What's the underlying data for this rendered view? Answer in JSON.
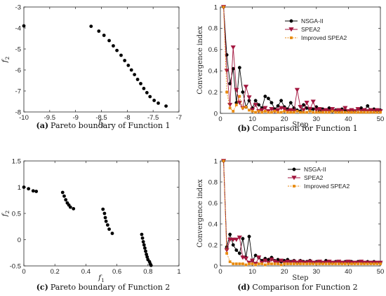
{
  "colors": {
    "nsga": "#000000",
    "spea": "#a3163f",
    "improved": "#e88a0f"
  },
  "chart_data": [
    {
      "type": "scatter",
      "caption_tag": "(a)",
      "caption_text": "Pareto boundary of Function 1",
      "xlabel": "f",
      "xlabel_sub": "1",
      "ylabel": "f",
      "ylabel_sub": "2",
      "xlim": [
        -10,
        -7
      ],
      "ylim": [
        -8,
        -3
      ],
      "xticks": [
        -10,
        -9.5,
        -9,
        -8.5,
        -8,
        -7.5,
        -7
      ],
      "xtick_labels": [
        "-10",
        "-9.5",
        "-9",
        "-8.5",
        "-8",
        "-7.5",
        "-7"
      ],
      "yticks": [
        -8,
        -7,
        -6,
        -5,
        -4,
        -3
      ],
      "ytick_labels": [
        "-8",
        "-7",
        "-6",
        "-5",
        "-4",
        "-3"
      ],
      "points": [
        [
          -10,
          -3.9
        ],
        [
          -8.7,
          -3.92
        ],
        [
          -8.55,
          -4.15
        ],
        [
          -8.45,
          -4.35
        ],
        [
          -8.35,
          -4.6
        ],
        [
          -8.27,
          -4.85
        ],
        [
          -8.2,
          -5.07
        ],
        [
          -8.12,
          -5.3
        ],
        [
          -8.05,
          -5.55
        ],
        [
          -7.98,
          -5.78
        ],
        [
          -7.92,
          -6.0
        ],
        [
          -7.86,
          -6.22
        ],
        [
          -7.8,
          -6.45
        ],
        [
          -7.74,
          -6.65
        ],
        [
          -7.68,
          -6.88
        ],
        [
          -7.62,
          -7.08
        ],
        [
          -7.56,
          -7.27
        ],
        [
          -7.48,
          -7.45
        ],
        [
          -7.4,
          -7.58
        ],
        [
          -7.25,
          -7.72
        ]
      ]
    },
    {
      "type": "line",
      "caption_tag": "(b)",
      "caption_text": "Comparison for Function 1",
      "xlabel": "Step",
      "ylabel": "Convergence index",
      "xlim": [
        0,
        50
      ],
      "ylim": [
        0,
        1
      ],
      "xticks": [
        0,
        10,
        20,
        30,
        40,
        50
      ],
      "xtick_labels": [
        "0",
        "10",
        "20",
        "30",
        "40",
        "50"
      ],
      "yticks": [
        0,
        0.2,
        0.4,
        0.6,
        0.8,
        1
      ],
      "ytick_labels": [
        "0",
        "0.2",
        "0.4",
        "0.6",
        "0.8",
        "1"
      ],
      "legend_position": "upper-middle",
      "series": [
        {
          "name": "NSGA-II",
          "color_key": "nsga",
          "marker": "circle",
          "x": [
            1,
            2,
            3,
            4,
            5,
            6,
            7,
            8,
            9,
            10,
            11,
            12,
            13,
            14,
            15,
            16,
            17,
            18,
            19,
            20,
            21,
            22,
            23,
            24,
            25,
            26,
            27,
            28,
            29,
            30,
            31,
            32,
            33,
            34,
            35,
            36,
            37,
            38,
            39,
            40,
            41,
            42,
            43,
            44,
            45,
            46,
            47,
            48,
            49,
            50
          ],
          "y": [
            1,
            0.55,
            0.28,
            0.42,
            0.1,
            0.43,
            0.2,
            0.06,
            0.12,
            0.05,
            0.12,
            0.08,
            0.05,
            0.16,
            0.14,
            0.1,
            0.04,
            0.07,
            0.12,
            0.06,
            0.04,
            0.1,
            0.05,
            0.03,
            0.02,
            0.08,
            0.05,
            0.03,
            0.04,
            0.06,
            0.02,
            0.04,
            0.03,
            0.05,
            0.02,
            0.03,
            0.02,
            0.04,
            0.03,
            0.02,
            0.03,
            0.02,
            0.04,
            0.05,
            0.03,
            0.07,
            0.03,
            0.04,
            0.02,
            0.03
          ]
        },
        {
          "name": "SPEA2",
          "color_key": "spea",
          "marker": "triangle-down",
          "x": [
            1,
            2,
            3,
            4,
            5,
            6,
            7,
            8,
            9,
            10,
            11,
            12,
            13,
            14,
            15,
            16,
            17,
            18,
            19,
            20,
            21,
            22,
            23,
            24,
            25,
            26,
            27,
            28,
            29,
            30,
            31,
            32,
            33,
            34,
            35,
            36,
            37,
            38,
            39,
            40,
            41,
            42,
            43,
            44,
            45,
            46,
            47,
            48,
            49,
            50
          ],
          "y": [
            1,
            0.4,
            0.08,
            0.62,
            0.22,
            0.1,
            0.05,
            0.25,
            0.15,
            0.03,
            0.08,
            0.02,
            0.03,
            0.05,
            0.02,
            0.04,
            0.02,
            0.03,
            0.05,
            0.04,
            0.02,
            0.03,
            0.02,
            0.22,
            0.06,
            0.03,
            0.1,
            0.04,
            0.11,
            0.03,
            0.04,
            0.02,
            0.03,
            0.02,
            0.04,
            0.02,
            0.03,
            0.02,
            0.05,
            0.02,
            0.03,
            0.02,
            0.04,
            0.02,
            0.03,
            0.02,
            0.03,
            0.02,
            0.03,
            0.02
          ]
        },
        {
          "name": "Improved SPEA2",
          "color_key": "improved",
          "marker": "square",
          "x": [
            1,
            2,
            3,
            4,
            5,
            6,
            7,
            8,
            9,
            10,
            11,
            12,
            13,
            14,
            15,
            16,
            17,
            18,
            19,
            20,
            21,
            22,
            23,
            24,
            25,
            26,
            27,
            28,
            29,
            30,
            31,
            32,
            33,
            34,
            35,
            36,
            37,
            38,
            39,
            40,
            41,
            42,
            43,
            44,
            45,
            46,
            47,
            48,
            49,
            50
          ],
          "y": [
            1,
            0.2,
            0.05,
            0.02,
            0.08,
            0.16,
            0.05,
            0.06,
            0.03,
            0.02,
            0.01,
            0.02,
            0.01,
            0.02,
            0.01,
            0.01,
            0.02,
            0.01,
            0.01,
            0.02,
            0.01,
            0.01,
            0.01,
            0.02,
            0.01,
            0.01,
            0.01,
            0.02,
            0.01,
            0.01,
            0.01,
            0.01,
            0.01,
            0.01,
            0.02,
            0.01,
            0.01,
            0.01,
            0.01,
            0.01,
            0.01,
            0.01,
            0.01,
            0.01,
            0.01,
            0.01,
            0.01,
            0.01,
            0.01,
            0.01
          ]
        }
      ]
    },
    {
      "type": "scatter",
      "caption_tag": "(c)",
      "caption_text": "Pareto boundary of Function 2",
      "xlabel": "f",
      "xlabel_sub": "1",
      "ylabel": "f",
      "ylabel_sub": "2",
      "xlim": [
        0,
        1
      ],
      "ylim": [
        -0.5,
        1.5
      ],
      "xticks": [
        0,
        0.2,
        0.4,
        0.6,
        0.8,
        1
      ],
      "xtick_labels": [
        "0",
        "0.2",
        "0.4",
        "0.6",
        "0.8",
        "1"
      ],
      "yticks": [
        -0.5,
        0,
        0.5,
        1,
        1.5
      ],
      "ytick_labels": [
        "-0.5",
        "0",
        "0.5",
        "1",
        "1.5"
      ],
      "points": [
        [
          0.0,
          1.0
        ],
        [
          0.03,
          0.97
        ],
        [
          0.06,
          0.93
        ],
        [
          0.08,
          0.92
        ],
        [
          0.25,
          0.9
        ],
        [
          0.26,
          0.83
        ],
        [
          0.27,
          0.76
        ],
        [
          0.28,
          0.7
        ],
        [
          0.29,
          0.66
        ],
        [
          0.3,
          0.62
        ],
        [
          0.32,
          0.59
        ],
        [
          0.51,
          0.58
        ],
        [
          0.52,
          0.5
        ],
        [
          0.525,
          0.42
        ],
        [
          0.53,
          0.35
        ],
        [
          0.54,
          0.28
        ],
        [
          0.55,
          0.2
        ],
        [
          0.57,
          0.12
        ],
        [
          0.76,
          0.1
        ],
        [
          0.765,
          0.03
        ],
        [
          0.77,
          -0.04
        ],
        [
          0.775,
          -0.1
        ],
        [
          0.78,
          -0.16
        ],
        [
          0.785,
          -0.22
        ],
        [
          0.79,
          -0.28
        ],
        [
          0.795,
          -0.33
        ],
        [
          0.8,
          -0.38
        ],
        [
          0.81,
          -0.42
        ],
        [
          0.815,
          -0.46
        ],
        [
          0.82,
          -0.49
        ]
      ]
    },
    {
      "type": "line",
      "caption_tag": "(d)",
      "caption_text": "Comparison for Function 2",
      "xlabel": "Step",
      "ylabel": "Convergence index",
      "xlim": [
        0,
        50
      ],
      "ylim": [
        0,
        1
      ],
      "xticks": [
        0,
        10,
        20,
        30,
        40,
        50
      ],
      "xtick_labels": [
        "0",
        "10",
        "20",
        "30",
        "40",
        "50"
      ],
      "yticks": [
        0,
        0.2,
        0.4,
        0.6,
        0.8,
        1
      ],
      "ytick_labels": [
        "0",
        "0.2",
        "0.4",
        "0.6",
        "0.8",
        "1"
      ],
      "legend_position": "upper-right",
      "series": [
        {
          "name": "NSGA-II",
          "color_key": "nsga",
          "marker": "circle",
          "x": [
            1,
            2,
            3,
            4,
            5,
            6,
            7,
            8,
            9,
            10,
            11,
            12,
            13,
            14,
            15,
            16,
            17,
            18,
            19,
            20,
            21,
            22,
            23,
            24,
            25,
            26,
            27,
            28,
            29,
            30,
            31,
            32,
            33,
            34,
            35,
            36,
            37,
            38,
            39,
            40,
            41,
            42,
            43,
            44,
            45,
            46,
            47,
            48,
            49,
            50
          ],
          "y": [
            1,
            0.18,
            0.3,
            0.2,
            0.15,
            0.12,
            0.26,
            0.08,
            0.28,
            0.05,
            0.1,
            0.08,
            0.05,
            0.07,
            0.06,
            0.08,
            0.05,
            0.06,
            0.04,
            0.05,
            0.06,
            0.04,
            0.05,
            0.03,
            0.05,
            0.04,
            0.04,
            0.05,
            0.03,
            0.04,
            0.04,
            0.03,
            0.05,
            0.04,
            0.03,
            0.04,
            0.04,
            0.03,
            0.04,
            0.03,
            0.04,
            0.03,
            0.04,
            0.04,
            0.03,
            0.04,
            0.03,
            0.04,
            0.03,
            0.03
          ]
        },
        {
          "name": "SPEA2",
          "color_key": "spea",
          "marker": "triangle-down",
          "x": [
            1,
            2,
            3,
            4,
            5,
            6,
            7,
            8,
            9,
            10,
            11,
            12,
            13,
            14,
            15,
            16,
            17,
            18,
            19,
            20,
            21,
            22,
            23,
            24,
            25,
            26,
            27,
            28,
            29,
            30,
            31,
            32,
            33,
            34,
            35,
            36,
            37,
            38,
            39,
            40,
            41,
            42,
            43,
            44,
            45,
            46,
            47,
            48,
            49,
            50
          ],
          "y": [
            1,
            0.15,
            0.25,
            0.25,
            0.25,
            0.27,
            0.08,
            0.07,
            0.03,
            0.05,
            0.02,
            0.08,
            0.03,
            0.05,
            0.03,
            0.06,
            0.04,
            0.03,
            0.05,
            0.03,
            0.04,
            0.03,
            0.04,
            0.03,
            0.04,
            0.03,
            0.03,
            0.04,
            0.03,
            0.03,
            0.04,
            0.03,
            0.03,
            0.04,
            0.03,
            0.03,
            0.04,
            0.03,
            0.03,
            0.04,
            0.03,
            0.03,
            0.03,
            0.04,
            0.03,
            0.03,
            0.03,
            0.03,
            0.03,
            0.03
          ]
        },
        {
          "name": "Improved SPEA2",
          "color_key": "improved",
          "marker": "square",
          "x": [
            1,
            2,
            3,
            4,
            5,
            6,
            7,
            8,
            9,
            10,
            11,
            12,
            13,
            14,
            15,
            16,
            17,
            18,
            19,
            20,
            21,
            22,
            23,
            24,
            25,
            26,
            27,
            28,
            29,
            30,
            31,
            32,
            33,
            34,
            35,
            36,
            37,
            38,
            39,
            40,
            41,
            42,
            43,
            44,
            45,
            46,
            47,
            48,
            49,
            50
          ],
          "y": [
            1,
            0.12,
            0.04,
            0.02,
            0.02,
            0.02,
            0.02,
            0.01,
            0.02,
            0.02,
            0.01,
            0.02,
            0.02,
            0.01,
            0.02,
            0.02,
            0.02,
            0.02,
            0.01,
            0.02,
            0.02,
            0.02,
            0.02,
            0.02,
            0.02,
            0.02,
            0.02,
            0.02,
            0.02,
            0.02,
            0.02,
            0.02,
            0.02,
            0.02,
            0.02,
            0.02,
            0.02,
            0.02,
            0.02,
            0.02,
            0.02,
            0.02,
            0.02,
            0.02,
            0.02,
            0.02,
            0.02,
            0.02,
            0.02,
            0.02
          ]
        }
      ]
    }
  ]
}
